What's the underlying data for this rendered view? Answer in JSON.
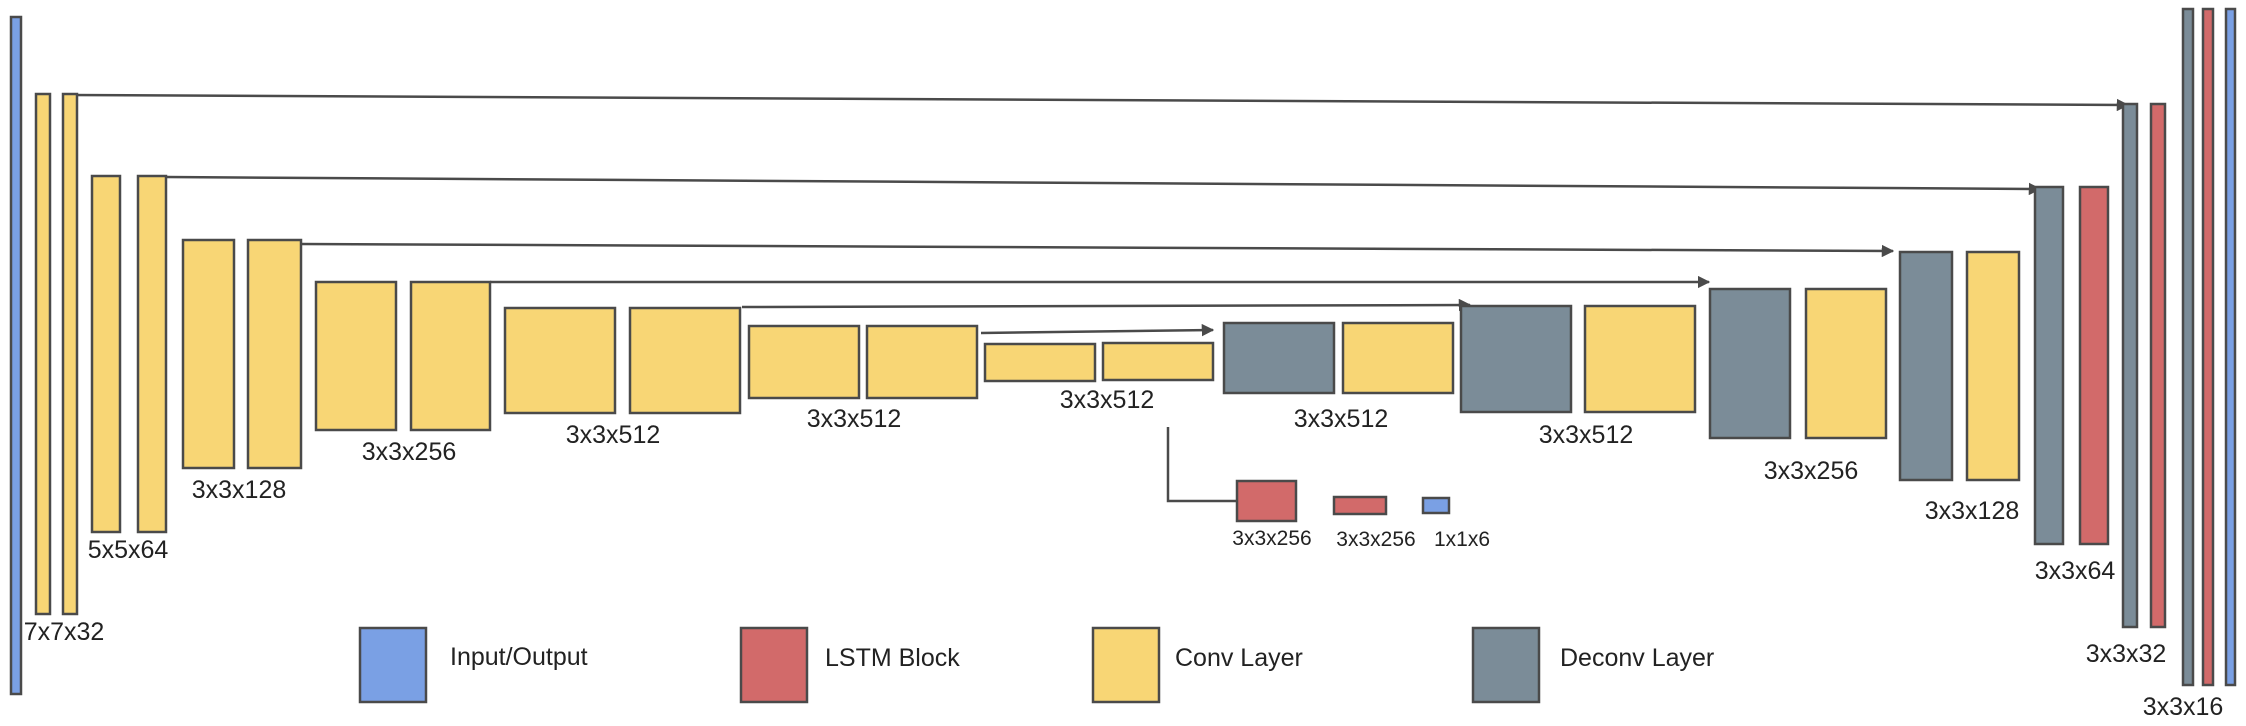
{
  "colors": {
    "io": "#7aa0e4",
    "lstm": "#d26a6a",
    "conv": "#f8d675",
    "deconv": "#7b8c98",
    "edge": "#4a4a4a"
  },
  "labels": {
    "enc_l1": "7x7x32",
    "enc_l2": "5x5x64",
    "enc_l3": "3x3x128",
    "enc_l4": "3x3x256",
    "enc_l5": "3x3x512",
    "enc_l6": "3x3x512",
    "enc_l7": "3x3x512",
    "dec_l1": "3x3x512",
    "dec_l2": "3x3x512",
    "dec_l3": "3x3x256",
    "dec_l4": "3x3x128",
    "dec_l5": "3x3x64",
    "dec_l6": "3x3x32",
    "dec_l7": "3x3x16",
    "lstm_1": "3x3x256",
    "lstm_2": "3x3x256",
    "bottleneck_out": "1x1x6"
  },
  "legend": [
    {
      "key": "io",
      "label": "Input/Output",
      "icon": "input-output-swatch"
    },
    {
      "key": "lstm",
      "label": "LSTM Block",
      "icon": "lstm-block-swatch"
    },
    {
      "key": "conv",
      "label": "Conv Layer",
      "icon": "conv-layer-swatch"
    },
    {
      "key": "deconv",
      "label": "Deconv Layer",
      "icon": "deconv-layer-swatch"
    }
  ]
}
